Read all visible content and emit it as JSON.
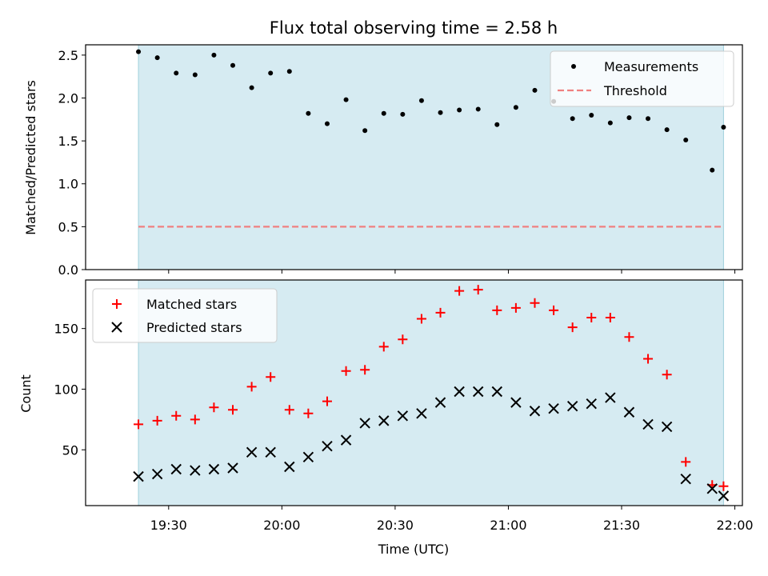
{
  "chart_data": [
    {
      "type": "scatter",
      "title": "Flux total observing time = 2.58 h",
      "xlabel": "",
      "ylabel": "Matched/Predicted stars",
      "ylim": [
        0,
        2.62
      ],
      "yticks": [
        "0.0",
        "0.5",
        "1.0",
        "1.5",
        "2.0",
        "2.5"
      ],
      "xlim_minutes": [
        1148,
        1322
      ],
      "xticks": [
        "19:30",
        "20:00",
        "20:30",
        "21:00",
        "21:30",
        "22:00"
      ],
      "legend_position": "top-right",
      "observing_span": [
        "19:22",
        "21:57"
      ],
      "series": [
        {
          "name": "Measurements",
          "marker": "dot",
          "color": "#000000",
          "x": [
            "19:22",
            "19:27",
            "19:32",
            "19:37",
            "19:42",
            "19:47",
            "19:52",
            "19:57",
            "20:02",
            "20:07",
            "20:12",
            "20:17",
            "20:22",
            "20:27",
            "20:32",
            "20:37",
            "20:42",
            "20:47",
            "20:52",
            "20:57",
            "21:02",
            "21:07",
            "21:12",
            "21:17",
            "21:22",
            "21:27",
            "21:32",
            "21:37",
            "21:42",
            "21:47",
            "21:54",
            "21:57"
          ],
          "values": [
            2.54,
            2.47,
            2.29,
            2.27,
            2.5,
            2.38,
            2.12,
            2.29,
            2.31,
            1.82,
            1.7,
            1.98,
            1.62,
            1.82,
            1.81,
            1.97,
            1.83,
            1.86,
            1.87,
            1.69,
            1.89,
            2.09,
            1.96,
            1.76,
            1.8,
            1.71,
            1.77,
            1.76,
            1.63,
            1.51,
            1.16,
            1.66
          ]
        },
        {
          "name": "Threshold",
          "marker": "dashed-line",
          "color": "#f08080",
          "value": 0.5
        }
      ]
    },
    {
      "type": "scatter",
      "title": "",
      "xlabel": "Time (UTC)",
      "ylabel": "Count",
      "ylim": [
        4,
        190
      ],
      "yticks": [
        "50",
        "100",
        "150"
      ],
      "xlim_minutes": [
        1148,
        1322
      ],
      "xticks": [
        "19:30",
        "20:00",
        "20:30",
        "21:00",
        "21:30",
        "22:00"
      ],
      "legend_position": "top-left",
      "observing_span": [
        "19:22",
        "21:57"
      ],
      "series": [
        {
          "name": "Matched stars",
          "marker": "plus",
          "color": "#ff0000",
          "x": [
            "19:22",
            "19:27",
            "19:32",
            "19:37",
            "19:42",
            "19:47",
            "19:52",
            "19:57",
            "20:02",
            "20:07",
            "20:12",
            "20:17",
            "20:22",
            "20:27",
            "20:32",
            "20:37",
            "20:42",
            "20:47",
            "20:52",
            "20:57",
            "21:02",
            "21:07",
            "21:12",
            "21:17",
            "21:22",
            "21:27",
            "21:32",
            "21:37",
            "21:42",
            "21:47",
            "21:54",
            "21:57"
          ],
          "values": [
            71,
            74,
            78,
            75,
            85,
            83,
            102,
            110,
            83,
            80,
            90,
            115,
            116,
            135,
            141,
            158,
            163,
            181,
            182,
            165,
            167,
            171,
            165,
            151,
            159,
            159,
            143,
            125,
            112,
            40,
            21,
            20
          ]
        },
        {
          "name": "Predicted stars",
          "marker": "x",
          "color": "#000000",
          "x": [
            "19:22",
            "19:27",
            "19:32",
            "19:37",
            "19:42",
            "19:47",
            "19:52",
            "19:57",
            "20:02",
            "20:07",
            "20:12",
            "20:17",
            "20:22",
            "20:27",
            "20:32",
            "20:37",
            "20:42",
            "20:47",
            "20:52",
            "20:57",
            "21:02",
            "21:07",
            "21:12",
            "21:17",
            "21:22",
            "21:27",
            "21:32",
            "21:37",
            "21:42",
            "21:47",
            "21:54",
            "21:57"
          ],
          "values": [
            28,
            30,
            34,
            33,
            34,
            35,
            48,
            48,
            36,
            44,
            53,
            58,
            72,
            74,
            78,
            80,
            89,
            98,
            98,
            98,
            89,
            82,
            84,
            86,
            88,
            93,
            81,
            71,
            69,
            26,
            18,
            12
          ]
        }
      ]
    }
  ]
}
